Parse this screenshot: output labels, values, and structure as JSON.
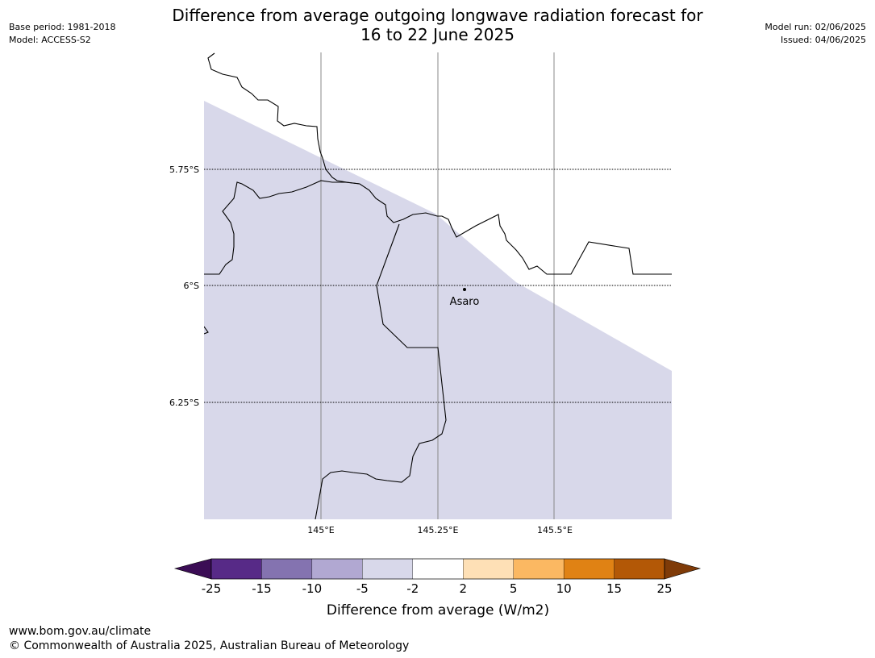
{
  "title": {
    "line1": "Difference from average outgoing longwave radiation forecast for",
    "line2": "16 to 22 June 2025"
  },
  "meta": {
    "base_period": "Base period: 1981-2018",
    "model": "Model: ACCESS-S2",
    "model_run": "Model run: 02/06/2025",
    "issued": "Issued: 04/06/2025"
  },
  "map": {
    "lat_labels": [
      "5.75°S",
      "6°S",
      "6.25°S"
    ],
    "lon_labels": [
      "145°E",
      "145.25°E",
      "145.5°E"
    ],
    "place": "Asaro",
    "shaded_category": "-5 to -2",
    "shade_color": "#d8d8ea"
  },
  "colorbar": {
    "title": "Difference from average (W/m2)",
    "ticks": [
      "-25",
      "-15",
      "-10",
      "-5",
      "-2",
      "2",
      "5",
      "10",
      "15",
      "25"
    ],
    "low_extend_color": "#3b0d55",
    "high_extend_color": "#7f3b08",
    "colors": [
      "#572a87",
      "#8473b0",
      "#b1a8d2",
      "#d8d8ea",
      "#ffffff",
      "#fee0b6",
      "#fbb862",
      "#e08214",
      "#b35806"
    ]
  },
  "footer": {
    "url": "www.bom.gov.au/climate",
    "copyright": "© Commonwealth of Australia 2025, Australian Bureau of Meteorology"
  }
}
